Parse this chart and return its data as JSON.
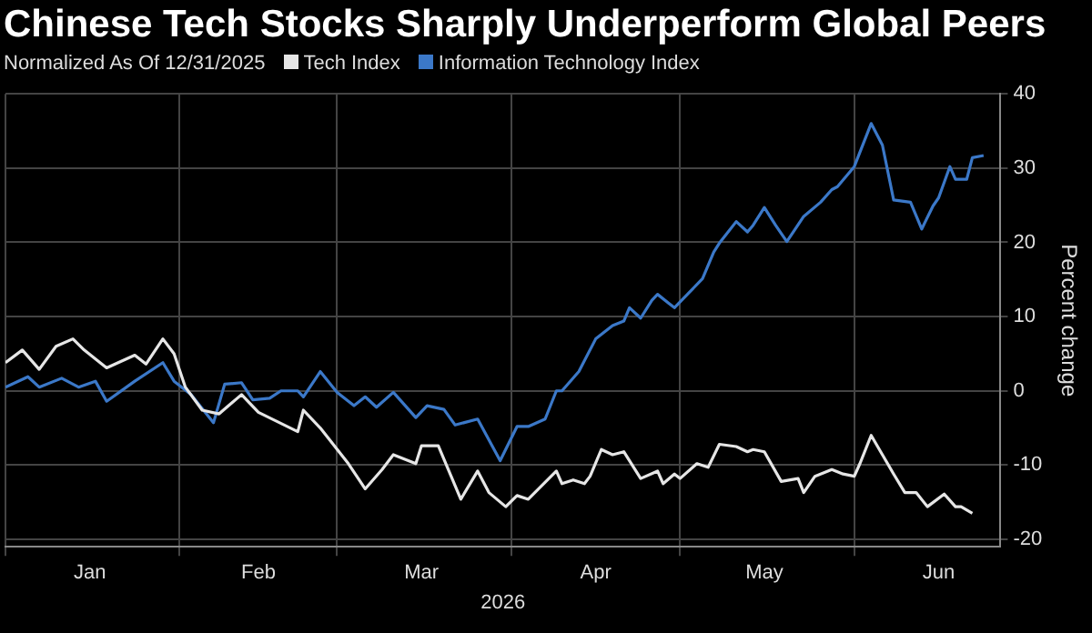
{
  "chart_data": {
    "type": "line",
    "title": "Chinese Tech Stocks Sharply Underperform Global Peers",
    "legend_title": "Normalized As Of 12/31/2025",
    "xlabel": "2026",
    "ylabel": "Percent change",
    "xlim": [
      "2026-01-01",
      "2026-06-27"
    ],
    "xticks": [
      {
        "value": "2026-01-01",
        "label": null
      },
      {
        "value": "2026-01-16",
        "label": "Jan"
      },
      {
        "value": "2026-02-01",
        "label": null
      },
      {
        "value": "2026-02-15",
        "label": "Feb"
      },
      {
        "value": "2026-03-01",
        "label": null
      },
      {
        "value": "2026-03-16",
        "label": "Mar"
      },
      {
        "value": "2026-04-01",
        "label": null
      },
      {
        "value": "2026-04-16",
        "label": "Apr"
      },
      {
        "value": "2026-05-01",
        "label": null
      },
      {
        "value": "2026-05-16",
        "label": "May"
      },
      {
        "value": "2026-06-01",
        "label": null
      },
      {
        "value": "2026-06-16",
        "label": "Jun"
      }
    ],
    "ylim": [
      -21,
      40
    ],
    "yticks": [
      -20,
      -10,
      0,
      10,
      20,
      30,
      40
    ],
    "grid": true,
    "legend": "top left",
    "marker": "none",
    "line_style": "solid",
    "series": [
      {
        "name": "Tech Index",
        "color": "#e6e6e6",
        "x": [
          "2026-01-01",
          "2026-01-04",
          "2026-01-07",
          "2026-01-10",
          "2026-01-13",
          "2026-01-15",
          "2026-01-19",
          "2026-01-24",
          "2026-01-26",
          "2026-01-29",
          "2026-01-31",
          "2026-02-02",
          "2026-02-05",
          "2026-02-08",
          "2026-02-12",
          "2026-02-15",
          "2026-02-22",
          "2026-02-23",
          "2026-02-26",
          "2026-03-03",
          "2026-03-06",
          "2026-03-09",
          "2026-03-11",
          "2026-03-15",
          "2026-03-16",
          "2026-03-19",
          "2026-03-23",
          "2026-03-26",
          "2026-03-28",
          "2026-03-31",
          "2026-04-02",
          "2026-04-04",
          "2026-04-09",
          "2026-04-10",
          "2026-04-12",
          "2026-04-14",
          "2026-04-15",
          "2026-04-17",
          "2026-04-19",
          "2026-04-21",
          "2026-04-24",
          "2026-04-27",
          "2026-04-28",
          "2026-04-30",
          "2026-05-01",
          "2026-05-04",
          "2026-05-06",
          "2026-05-08",
          "2026-05-11",
          "2026-05-13",
          "2026-05-14",
          "2026-05-16",
          "2026-05-19",
          "2026-05-22",
          "2026-05-23",
          "2026-05-25",
          "2026-05-28",
          "2026-05-30",
          "2026-06-01",
          "2026-06-02",
          "2026-06-04",
          "2026-06-06",
          "2026-06-08",
          "2026-06-10",
          "2026-06-12",
          "2026-06-14",
          "2026-06-17",
          "2026-06-19",
          "2026-06-20",
          "2026-06-22"
        ],
        "values": [
          3.8,
          5.5,
          2.9,
          6.0,
          7.0,
          5.5,
          3.1,
          4.8,
          3.6,
          7.0,
          5.0,
          0.5,
          -2.6,
          -3.1,
          -0.5,
          -2.9,
          -5.5,
          -2.6,
          -5.0,
          -9.8,
          -13.2,
          -10.6,
          -8.6,
          -9.8,
          -7.4,
          -7.4,
          -14.6,
          -10.8,
          -13.7,
          -15.6,
          -14.1,
          -14.6,
          -10.8,
          -12.5,
          -12.0,
          -12.5,
          -11.5,
          -7.9,
          -8.6,
          -8.2,
          -11.8,
          -10.8,
          -12.5,
          -11.2,
          -11.8,
          -9.8,
          -10.3,
          -7.2,
          -7.5,
          -8.2,
          -7.9,
          -8.2,
          -12.2,
          -11.8,
          -13.7,
          -11.5,
          -10.6,
          -11.2,
          -11.5,
          -9.8,
          -6.0,
          -8.6,
          -11.2,
          -13.7,
          -13.7,
          -15.6,
          -13.9,
          -15.6,
          -15.6,
          -16.5
        ]
      },
      {
        "name": "Information Technology Index",
        "color": "#3b78c8",
        "x": [
          "2026-01-01",
          "2026-01-05",
          "2026-01-07",
          "2026-01-11",
          "2026-01-14",
          "2026-01-17",
          "2026-01-19",
          "2026-01-24",
          "2026-01-29",
          "2026-01-31",
          "2026-02-03",
          "2026-02-07",
          "2026-02-09",
          "2026-02-12",
          "2026-02-14",
          "2026-02-17",
          "2026-02-19",
          "2026-02-22",
          "2026-02-23",
          "2026-02-26",
          "2026-03-01",
          "2026-03-04",
          "2026-03-06",
          "2026-03-08",
          "2026-03-11",
          "2026-03-15",
          "2026-03-17",
          "2026-03-20",
          "2026-03-22",
          "2026-03-26",
          "2026-03-30",
          "2026-04-02",
          "2026-04-04",
          "2026-04-07",
          "2026-04-09",
          "2026-04-10",
          "2026-04-13",
          "2026-04-16",
          "2026-04-19",
          "2026-04-21",
          "2026-04-22",
          "2026-04-24",
          "2026-04-26",
          "2026-04-27",
          "2026-04-29",
          "2026-04-30",
          "2026-05-05",
          "2026-05-07",
          "2026-05-08",
          "2026-05-11",
          "2026-05-13",
          "2026-05-14",
          "2026-05-16",
          "2026-05-18",
          "2026-05-20",
          "2026-05-23",
          "2026-05-26",
          "2026-05-28",
          "2026-05-29",
          "2026-06-01",
          "2026-06-04",
          "2026-06-06",
          "2026-06-08",
          "2026-06-11",
          "2026-06-13",
          "2026-06-15",
          "2026-06-16",
          "2026-06-18",
          "2026-06-19",
          "2026-06-21",
          "2026-06-22",
          "2026-06-24"
        ],
        "values": [
          0.5,
          1.9,
          0.5,
          1.7,
          0.5,
          1.3,
          -1.4,
          1.3,
          3.8,
          1.3,
          -0.5,
          -4.3,
          0.9,
          1.1,
          -1.2,
          -1.0,
          0,
          0,
          -0.8,
          2.6,
          -0.2,
          -2.0,
          -0.8,
          -2.2,
          -0.2,
          -3.6,
          -2.0,
          -2.5,
          -4.6,
          -3.8,
          -9.4,
          -4.8,
          -4.8,
          -3.8,
          0,
          0,
          2.6,
          7.0,
          8.8,
          9.4,
          11.2,
          9.8,
          12.2,
          13.0,
          11.8,
          11.2,
          15.1,
          18.7,
          19.9,
          22.8,
          21.4,
          22.3,
          24.7,
          22.3,
          20.1,
          23.5,
          25.4,
          27.1,
          27.5,
          30.2,
          36.0,
          33.1,
          25.7,
          25.4,
          21.8,
          24.9,
          26.0,
          30.2,
          28.5,
          28.5,
          31.4,
          31.7
        ]
      }
    ]
  }
}
